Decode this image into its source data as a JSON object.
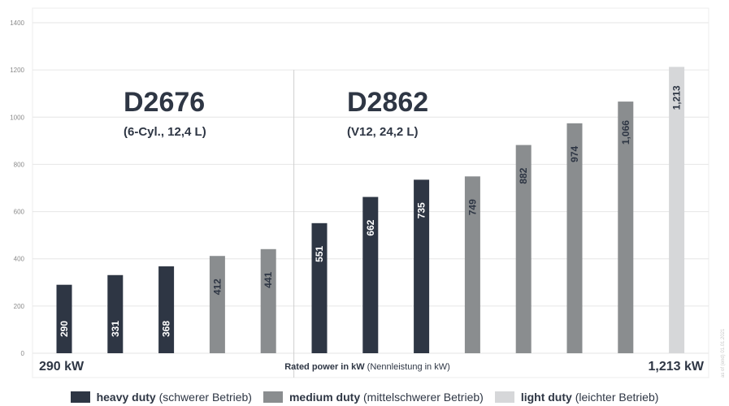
{
  "chart_data": {
    "type": "bar",
    "yticks": [
      0,
      200,
      400,
      600,
      800,
      1000,
      1200,
      1400
    ],
    "ylim": [
      0,
      1400
    ],
    "grid": true,
    "bars": [
      {
        "value": 290,
        "label": "290",
        "duty": "heavy"
      },
      {
        "value": 331,
        "label": "331",
        "duty": "heavy"
      },
      {
        "value": 368,
        "label": "368",
        "duty": "heavy"
      },
      {
        "value": 412,
        "label": "412",
        "duty": "medium"
      },
      {
        "value": 441,
        "label": "441",
        "duty": "medium"
      },
      {
        "value": 551,
        "label": "551",
        "duty": "heavy"
      },
      {
        "value": 662,
        "label": "662",
        "duty": "heavy"
      },
      {
        "value": 735,
        "label": "735",
        "duty": "heavy"
      },
      {
        "value": 749,
        "label": "749",
        "duty": "medium"
      },
      {
        "value": 882,
        "label": "882",
        "duty": "medium"
      },
      {
        "value": 974,
        "label": "974",
        "duty": "medium"
      },
      {
        "value": 1066,
        "label": "1,066",
        "duty": "medium"
      },
      {
        "value": 1213,
        "label": "1,213",
        "duty": "light"
      }
    ],
    "engines": [
      {
        "name": "D2676",
        "spec": "(6-Cyl., 12,4 L)",
        "bars": 5
      },
      {
        "name": "D2862",
        "spec": "(V12, 24,2 L)",
        "bars": 8
      }
    ],
    "x_min_label": "290 kW",
    "x_max_label": "1,213 kW",
    "axis_title_bold": "Rated power in kW",
    "axis_title_normal": " (Nennleistung in kW)",
    "side_note": "as of (end) 01.01.2021",
    "legend_position": "bottom",
    "legend": [
      {
        "duty": "heavy",
        "strong": "heavy duty",
        "rest": " (schwerer Betrieb)"
      },
      {
        "duty": "medium",
        "strong": "medium duty",
        "rest": " (mittelschwerer Betrieb)"
      },
      {
        "duty": "light",
        "strong": "light duty",
        "rest": " (leichter Betrieb)"
      }
    ],
    "colors": {
      "heavy": "#2e3644",
      "medium": "#8a8d8f",
      "light": "#d6d7d9",
      "heavy_text": "#ffffff",
      "medium_text": "#2e3644",
      "light_text": "#2e3644",
      "grid": "#e6e6e6",
      "text": "#2e3644"
    }
  }
}
